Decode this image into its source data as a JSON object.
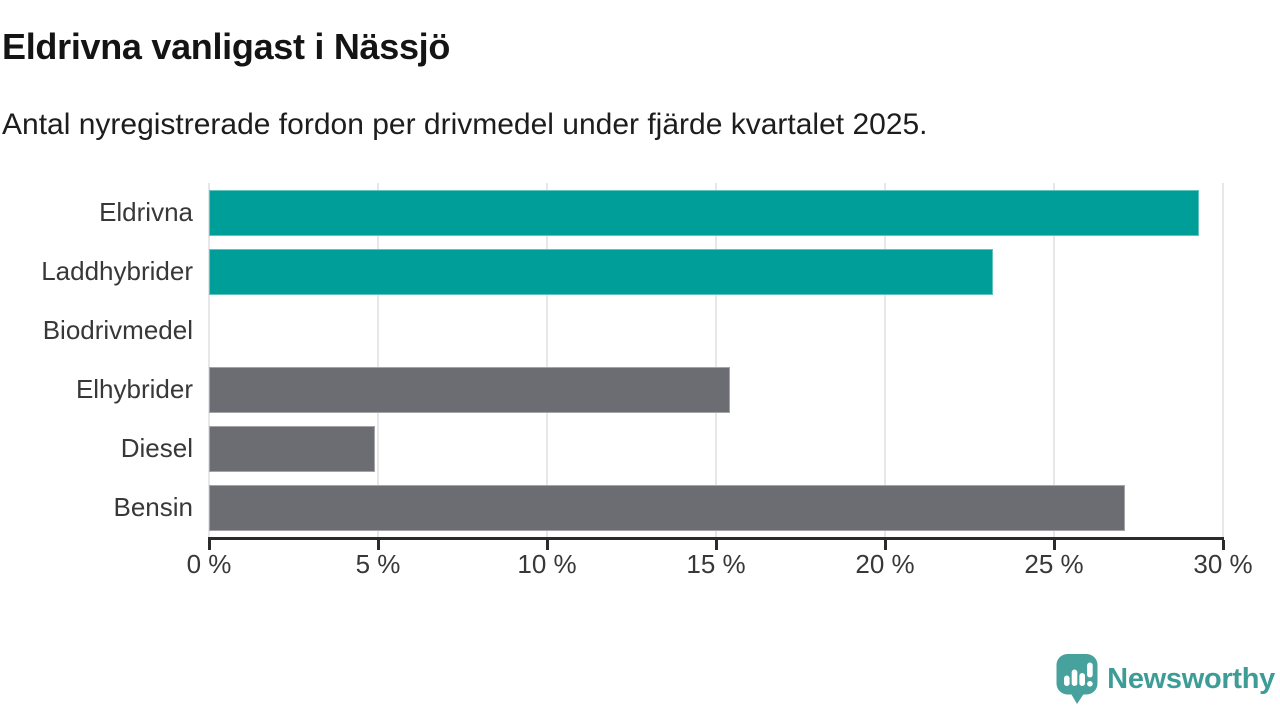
{
  "header": {
    "title": "Eldrivna vanligast i Nässjö",
    "subtitle": "Antal nyregistrerade fordon per drivmedel under fjärde kvartalet 2025."
  },
  "chart_data": {
    "type": "bar",
    "orientation": "horizontal",
    "title": "Eldrivna vanligast i Nässjö",
    "subtitle": "Antal nyregistrerade fordon per drivmedel under fjärde kvartalet 2025.",
    "categories": [
      "Eldrivna",
      "Laddhybrider",
      "Biodrivmedel",
      "Elhybrider",
      "Diesel",
      "Bensin"
    ],
    "values": [
      29.3,
      23.2,
      0,
      15.4,
      4.9,
      27.1
    ],
    "unit": "%",
    "xlabel": "",
    "ylabel": "",
    "xlim": [
      0,
      30
    ],
    "x_ticks": [
      0,
      5,
      10,
      15,
      20,
      25,
      30
    ],
    "x_tick_labels": [
      "0 %",
      "5 %",
      "10 %",
      "15 %",
      "20 %",
      "25 %",
      "30 %"
    ],
    "bar_colors": [
      "#009e99",
      "#009e99",
      "#6c6d72",
      "#6c6d72",
      "#6c6d72",
      "#6c6d72"
    ],
    "grid": "vertical-only",
    "legend": "none"
  },
  "footer": {
    "brand": "Newsworthy"
  },
  "colors": {
    "bar_teal": "#009e99",
    "bar_gray": "#6c6d72",
    "brand_teal": "#3e9c97",
    "logo_bubble_teal": "#47a29e",
    "axis": "#2b2b2b",
    "gridline": "#e7e7e9",
    "title_text": "#141414",
    "label_text": "#383838",
    "background": "#ffffff"
  }
}
